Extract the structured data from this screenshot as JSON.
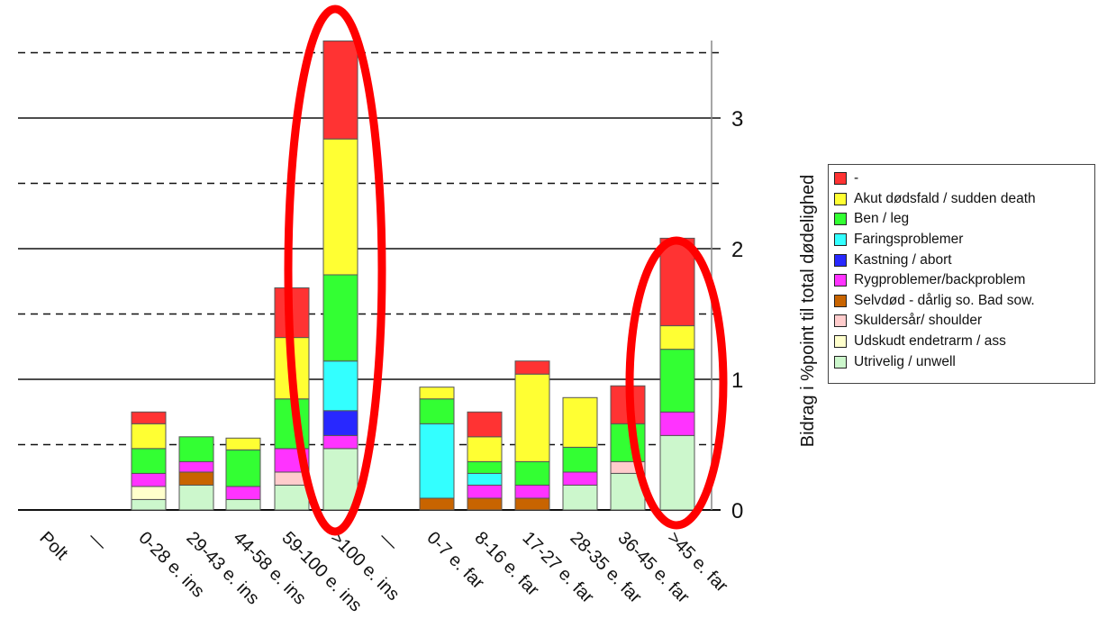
{
  "chart_data": {
    "type": "bar",
    "stacked": true,
    "categories": [
      "Polt",
      "—",
      "0-28 e. ins",
      "29-43 e. ins",
      "44-58 e. ins",
      "59-100 e. ins",
      ">100 e. ins",
      "—",
      "0-7 e. far",
      "8-16 e. far",
      "17-27 e. far",
      "28-35 e. far",
      "36-45 e. far",
      ">45 e. far"
    ],
    "ylabel": "Bidrag i %point til total dødelighed",
    "ylim": [
      0,
      3.6
    ],
    "yticks": [
      0,
      1,
      2,
      3
    ],
    "y_axis_position": "right",
    "grid": {
      "solid_at": [
        1,
        2,
        3
      ],
      "dashed_at": [
        0.5,
        1.5,
        2.5,
        3.5
      ]
    },
    "legend_position": "right",
    "series": [
      {
        "name": "Utrivelig / unwell",
        "color": "#ccf7cc",
        "values": [
          0,
          0,
          0.08,
          0.19,
          0.08,
          0.19,
          0.47,
          0,
          0,
          0,
          0,
          0.19,
          0.28,
          0.57
        ]
      },
      {
        "name": "Udskudt endetrarm / ass",
        "color": "#ffffcc",
        "values": [
          0,
          0,
          0.1,
          0,
          0,
          0,
          0,
          0,
          0,
          0,
          0,
          0,
          0,
          0
        ]
      },
      {
        "name": "Skuldersår/ shoulder",
        "color": "#ffcccc",
        "values": [
          0,
          0,
          0,
          0,
          0,
          0.1,
          0,
          0,
          0,
          0,
          0,
          0,
          0.09,
          0
        ]
      },
      {
        "name": "Selvdød - dårlig so. Bad sow.",
        "color": "#c86400",
        "values": [
          0,
          0,
          0,
          0.1,
          0,
          0,
          0,
          0,
          0.09,
          0.09,
          0.09,
          0,
          0,
          0
        ]
      },
      {
        "name": "Rygproblemer/backproblem",
        "color": "#ff33ff",
        "values": [
          0,
          0,
          0.1,
          0.08,
          0.1,
          0.18,
          0.1,
          0,
          0,
          0.1,
          0.1,
          0.1,
          0,
          0.18
        ]
      },
      {
        "name": "Kastning / abort",
        "color": "#2828ff",
        "values": [
          0,
          0,
          0,
          0,
          0,
          0,
          0.19,
          0,
          0,
          0,
          0,
          0,
          0,
          0
        ]
      },
      {
        "name": "Faringsproblemer",
        "color": "#33ffff",
        "values": [
          0,
          0,
          0,
          0,
          0,
          0,
          0.38,
          0,
          0.57,
          0.09,
          0,
          0,
          0,
          0
        ]
      },
      {
        "name": "Ben / leg",
        "color": "#33ff33",
        "values": [
          0,
          0,
          0.19,
          0.19,
          0.28,
          0.38,
          0.66,
          0,
          0.19,
          0.09,
          0.18,
          0.19,
          0.29,
          0.48
        ]
      },
      {
        "name": "Akut dødsfald / sudden death",
        "color": "#ffff33",
        "values": [
          0,
          0,
          0.19,
          0,
          0.09,
          0.47,
          1.04,
          0,
          0.09,
          0.19,
          0.67,
          0.38,
          0,
          0.18
        ]
      },
      {
        "name": "-",
        "color": "#ff3333",
        "values": [
          0,
          0,
          0.09,
          0,
          0,
          0.38,
          0.75,
          0,
          0,
          0.19,
          0.1,
          0,
          0.29,
          0.67
        ]
      }
    ],
    "legend_order": [
      "-",
      "Akut dødsfald / sudden death",
      "Ben / leg",
      "Faringsproblemer",
      "Kastning / abort",
      "Rygproblemer/backproblem",
      "Selvdød - dårlig so. Bad sow.",
      "Skuldersår/ shoulder",
      "Udskudt endetrarm / ass",
      "Utrivelig / unwell"
    ],
    "highlight_ellipses": {
      "color": "#ff0000",
      "around_categories": [
        "59-100 e. ins",
        ">100 e. ins",
        ">45 e. far"
      ]
    }
  }
}
